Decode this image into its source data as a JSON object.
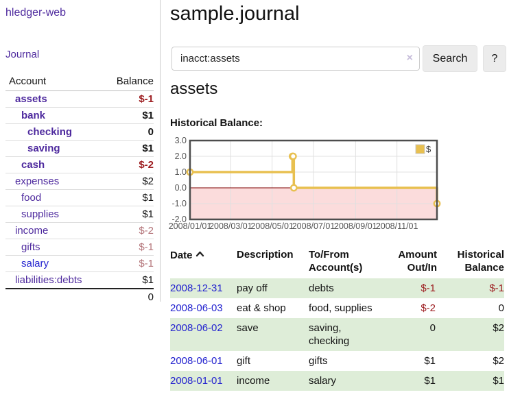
{
  "colors": {
    "link_purple": "#4e2a9e",
    "link_blue": "#2323cf",
    "negative_strong": "#9c1b1e",
    "negative_muted": "#b4757a",
    "row_highlight_green": "#deedd8",
    "chart_series_gold": "#e8c050",
    "chart_negative_fill": "#fbdcdc",
    "chart_zero_line": "#7f0000"
  },
  "app": {
    "title": "hledger-web"
  },
  "sidebar": {
    "journal_link": "Journal",
    "accounts": {
      "header_account": "Account",
      "header_balance": "Balance",
      "rows": [
        {
          "name": "assets",
          "balance": "$-1",
          "depth": 1,
          "bold": true,
          "link_style": "purple",
          "balance_style": "neg-strong"
        },
        {
          "name": "bank",
          "balance": "$1",
          "depth": 2,
          "bold": true,
          "link_style": "purple",
          "balance_style": "pos"
        },
        {
          "name": "checking",
          "balance": "0",
          "depth": 3,
          "bold": true,
          "link_style": "purple",
          "balance_style": "pos"
        },
        {
          "name": "saving",
          "balance": "$1",
          "depth": 3,
          "bold": true,
          "link_style": "purple",
          "balance_style": "pos"
        },
        {
          "name": "cash",
          "balance": "$-2",
          "depth": 2,
          "bold": true,
          "link_style": "purple",
          "balance_style": "neg-strong"
        },
        {
          "name": "expenses",
          "balance": "$2",
          "depth": 1,
          "bold": false,
          "link_style": "purple",
          "balance_style": "pos"
        },
        {
          "name": "food",
          "balance": "$1",
          "depth": 2,
          "bold": false,
          "link_style": "purple",
          "balance_style": "pos"
        },
        {
          "name": "supplies",
          "balance": "$1",
          "depth": 2,
          "bold": false,
          "link_style": "purple",
          "balance_style": "pos"
        },
        {
          "name": "income",
          "balance": "$-2",
          "depth": 1,
          "bold": false,
          "link_style": "purple",
          "balance_style": "neg-muted"
        },
        {
          "name": "gifts",
          "balance": "$-1",
          "depth": 2,
          "bold": false,
          "link_style": "purple",
          "balance_style": "neg-muted"
        },
        {
          "name": "salary",
          "balance": "$-1",
          "depth": 2,
          "bold": false,
          "link_style": "blue",
          "balance_style": "neg-muted"
        },
        {
          "name": "liabilities:debts",
          "balance": "$1",
          "depth": 1,
          "bold": false,
          "link_style": "purple",
          "balance_style": "pos"
        }
      ],
      "total": "0"
    }
  },
  "main": {
    "title": "sample.journal",
    "search": {
      "query": "inacct:assets",
      "clear_icon": "×",
      "search_button": "Search",
      "help_button": "?"
    },
    "account_heading": "assets",
    "chart_label": "Historical Balance:"
  },
  "chart_data": {
    "type": "line",
    "title": "Historical Balance:",
    "legend": "$",
    "legend_position": "top-right",
    "step": true,
    "grid": true,
    "ylim": [
      -2,
      3
    ],
    "yticks": [
      {
        "label": "3.0",
        "value": 3
      },
      {
        "label": "2.0",
        "value": 2
      },
      {
        "label": "1.0",
        "value": 1
      },
      {
        "label": "0.0",
        "value": 0
      },
      {
        "label": "-1.0",
        "value": -1
      },
      {
        "label": "-2.0",
        "value": -2
      }
    ],
    "ygrid": [
      2,
      1,
      -1
    ],
    "xrange_days": [
      0,
      364
    ],
    "xticks": [
      {
        "label": "2008/01/01",
        "day": 0
      },
      {
        "label": "2008/03/01",
        "day": 60
      },
      {
        "label": "2008/05/01",
        "day": 121
      },
      {
        "label": "2008/07/01",
        "day": 182
      },
      {
        "label": "2008/09/01",
        "day": 244
      },
      {
        "label": "2008/11/01",
        "day": 305
      }
    ],
    "series": [
      {
        "name": "$",
        "color": "#e8c050",
        "points": [
          {
            "date": "2008-01-01",
            "day": 0,
            "value": 1
          },
          {
            "date": "2008-06-01",
            "day": 151,
            "value": 2
          },
          {
            "date": "2008-06-02",
            "day": 152,
            "value": 2
          },
          {
            "date": "2008-06-03",
            "day": 153,
            "value": 0
          },
          {
            "date": "2008-12-31",
            "day": 364,
            "value": -1
          }
        ]
      }
    ],
    "negative_fill": "#fbdcdc",
    "zero_line_color": "#7f0000"
  },
  "register": {
    "headers": [
      "Date",
      "Description",
      "To/From Account(s)",
      "Amount Out/In",
      "Historical Balance"
    ],
    "sort_icon": "chevron-up",
    "rows": [
      {
        "date": "2008-12-31",
        "description": "pay off",
        "accounts": "debts",
        "amount": "$-1",
        "balance": "$-1"
      },
      {
        "date": "2008-06-03",
        "description": "eat & shop",
        "accounts": "food, supplies",
        "amount": "$-2",
        "balance": "0"
      },
      {
        "date": "2008-06-02",
        "description": "save",
        "accounts": "saving, checking",
        "amount": "0",
        "balance": "$2"
      },
      {
        "date": "2008-06-01",
        "description": "gift",
        "accounts": "gifts",
        "amount": "$1",
        "balance": "$2"
      },
      {
        "date": "2008-01-01",
        "description": "income",
        "accounts": "salary",
        "amount": "$1",
        "balance": "$1"
      }
    ]
  }
}
